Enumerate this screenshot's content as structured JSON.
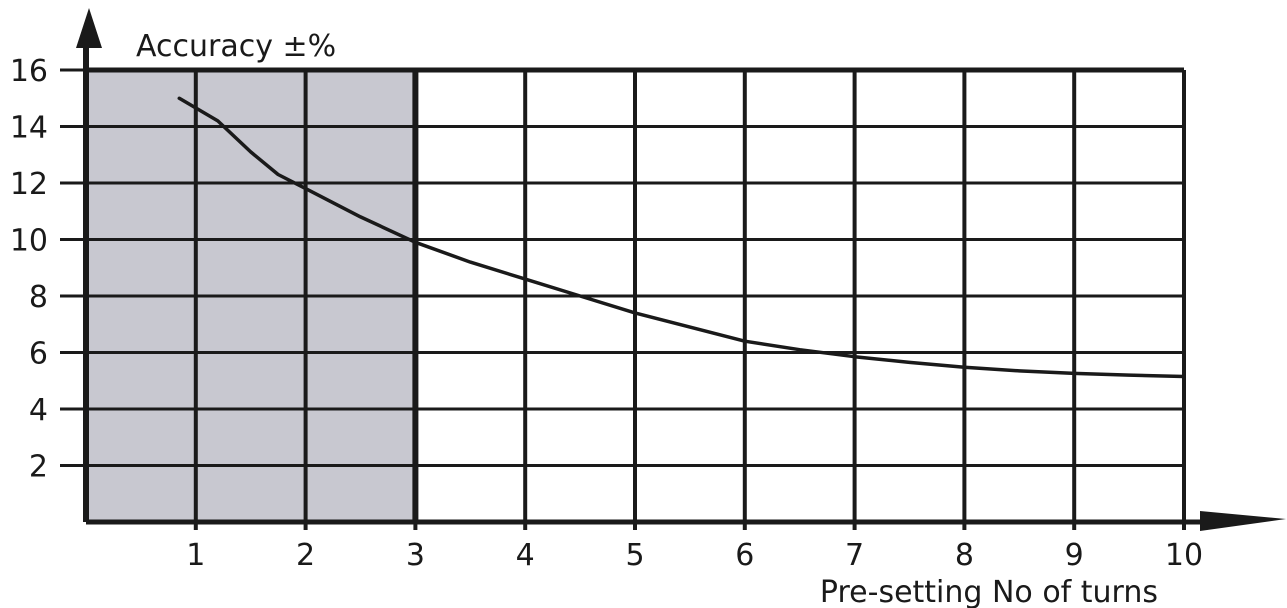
{
  "chart_data": {
    "type": "line",
    "title": "",
    "xlabel": "Pre-setting No of turns",
    "ylabel": "Accuracy ±%",
    "xlim": [
      0,
      10
    ],
    "ylim": [
      0,
      16
    ],
    "x_ticks": [
      1,
      2,
      3,
      4,
      5,
      6,
      7,
      8,
      9,
      10
    ],
    "y_ticks": [
      2,
      4,
      6,
      8,
      10,
      12,
      14,
      16
    ],
    "shaded_region": {
      "x_from": 0,
      "x_to": 3,
      "color": "#c8c8d0"
    },
    "grid": true,
    "series": [
      {
        "x": [
          0.85,
          1.2,
          1.5,
          1.75,
          2.0,
          2.5,
          3.0,
          3.5,
          4.0,
          4.5,
          5.0,
          5.5,
          6.0,
          6.5,
          7.0,
          7.5,
          8.0,
          8.5,
          9.0,
          9.5,
          10.0
        ],
        "y": [
          15.0,
          14.2,
          13.1,
          12.3,
          11.8,
          10.8,
          9.9,
          9.2,
          8.6,
          8.0,
          7.4,
          6.9,
          6.4,
          6.1,
          5.85,
          5.65,
          5.48,
          5.35,
          5.26,
          5.2,
          5.15
        ]
      }
    ]
  }
}
